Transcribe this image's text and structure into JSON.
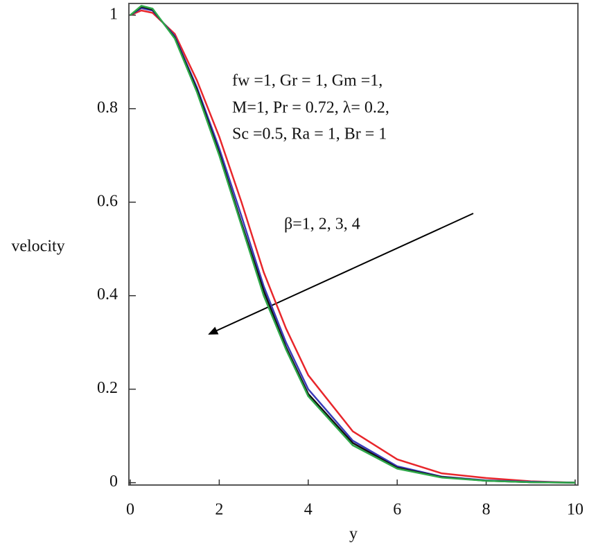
{
  "chart_data": {
    "type": "line",
    "x_label": "y",
    "y_label": "velocity",
    "x": [
      0,
      0.25,
      0.5,
      1,
      1.5,
      2,
      2.5,
      3,
      3.5,
      4,
      5,
      6,
      7,
      8,
      9,
      10
    ],
    "series": [
      {
        "color": "#e8262b",
        "values": [
          1,
          1.01,
          1.005,
          0.96,
          0.86,
          0.74,
          0.6,
          0.45,
          0.33,
          0.23,
          0.11,
          0.05,
          0.02,
          0.01,
          0.003,
          0
        ]
      },
      {
        "color": "#3a3ab8",
        "values": [
          1,
          1.015,
          1.01,
          0.955,
          0.845,
          0.715,
          0.57,
          0.42,
          0.3,
          0.2,
          0.09,
          0.035,
          0.013,
          0.005,
          0.002,
          0
        ]
      },
      {
        "color": "#111111",
        "values": [
          1,
          1.018,
          1.012,
          0.952,
          0.84,
          0.705,
          0.555,
          0.41,
          0.29,
          0.19,
          0.085,
          0.032,
          0.012,
          0.004,
          0.001,
          0
        ]
      },
      {
        "color": "#2ea84a",
        "values": [
          1,
          1.02,
          1.014,
          0.95,
          0.835,
          0.7,
          0.55,
          0.4,
          0.285,
          0.185,
          0.08,
          0.03,
          0.011,
          0.004,
          0.001,
          0
        ]
      }
    ],
    "xlim": [
      0,
      10
    ],
    "xticks": [
      0,
      2,
      4,
      6,
      8,
      10
    ],
    "ylim": [
      -0.005,
      1.025
    ],
    "yticks": [
      0,
      0.2,
      0.4,
      0.6,
      0.8,
      1
    ],
    "annotations": [
      "fw =1, Gr = 1, Gm =1,",
      "M=1, Pr = 0.72, λ= 0.2,",
      "Sc =0.5, Ra = 1, Br = 1",
      "β=1, 2, 3, 4"
    ]
  }
}
